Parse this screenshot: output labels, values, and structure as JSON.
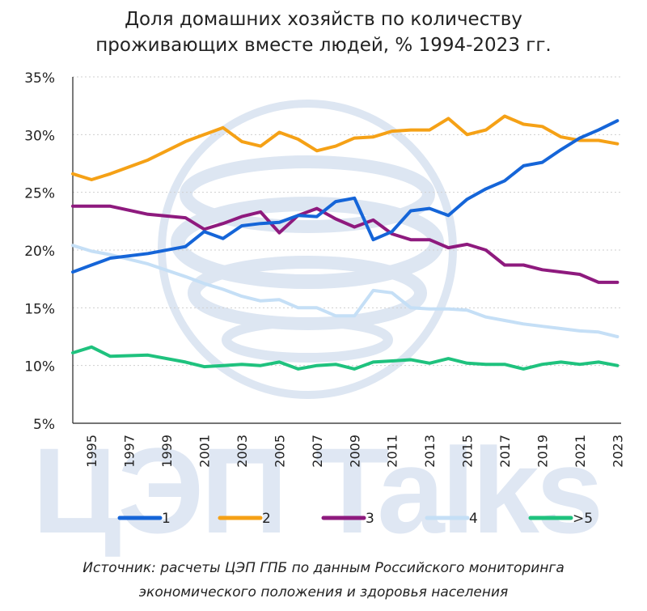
{
  "title_line1": "Доля домашних хозяйств по количеству",
  "title_line2": "проживающих вместе людей, % 1994-2023 гг.",
  "source_line1": "Источник: расчеты ЦЭП ГПБ по данным Российского мониторинга",
  "source_line2": "экономического положения и здоровья населения",
  "watermark": "ЦЭП Talks",
  "chart_data": {
    "type": "line",
    "title": "Доля домашних хозяйств по количеству проживающих вместе людей, % 1994-2023 гг.",
    "xlabel": "",
    "ylabel": "",
    "ylim": [
      5,
      35
    ],
    "yticks": [
      "5%",
      "10%",
      "15%",
      "20%",
      "25%",
      "30%",
      "35%"
    ],
    "xticks": [
      "1995",
      "1997",
      "1999",
      "2001",
      "2003",
      "2005",
      "2007",
      "2009",
      "2011",
      "2013",
      "2015",
      "2017",
      "2019",
      "2021",
      "2023"
    ],
    "grid": "horizontal dotted",
    "legend": "bottom",
    "x": [
      1994,
      1995,
      1996,
      1998,
      2000,
      2001,
      2002,
      2003,
      2004,
      2005,
      2006,
      2007,
      2008,
      2009,
      2010,
      2011,
      2012,
      2013,
      2014,
      2015,
      2016,
      2017,
      2018,
      2019,
      2020,
      2021,
      2022,
      2023
    ],
    "series": [
      {
        "name": "1",
        "color": "#1565d8",
        "values": [
          18.1,
          18.7,
          19.3,
          19.7,
          20.3,
          21.6,
          21.0,
          22.1,
          22.3,
          22.4,
          23.0,
          22.9,
          24.2,
          24.5,
          20.9,
          21.6,
          23.4,
          23.6,
          23.0,
          24.4,
          25.3,
          26.0,
          27.3,
          27.6,
          28.7,
          29.7,
          30.4,
          31.2
        ]
      },
      {
        "name": "2",
        "color": "#f5a116",
        "values": [
          26.6,
          26.1,
          26.6,
          27.8,
          29.4,
          30.0,
          30.6,
          29.4,
          29.0,
          30.2,
          29.6,
          28.6,
          29.0,
          29.7,
          29.8,
          30.3,
          30.4,
          30.4,
          31.4,
          30.0,
          30.4,
          31.6,
          30.9,
          30.7,
          29.8,
          29.5,
          29.5,
          29.2
        ]
      },
      {
        "name": "3",
        "color": "#8e1a7e",
        "values": [
          23.8,
          23.8,
          23.8,
          23.1,
          22.8,
          21.8,
          22.3,
          22.9,
          23.3,
          21.5,
          23.0,
          23.6,
          22.7,
          22.0,
          22.6,
          21.4,
          20.9,
          20.9,
          20.2,
          20.5,
          20.0,
          18.7,
          18.7,
          18.3,
          18.1,
          17.9,
          17.2,
          17.2
        ]
      },
      {
        "name": "4",
        "color": "#c5dff6",
        "values": [
          20.4,
          19.9,
          19.6,
          18.8,
          17.7,
          17.1,
          16.6,
          16.0,
          15.6,
          15.7,
          15.0,
          15.0,
          14.3,
          14.3,
          16.5,
          16.3,
          15.0,
          14.9,
          14.9,
          14.8,
          14.2,
          13.9,
          13.6,
          13.4,
          13.2,
          13.0,
          12.9,
          12.5
        ]
      },
      {
        "name": ">5",
        "color": "#1fc27e",
        "values": [
          11.1,
          11.6,
          10.8,
          10.9,
          10.3,
          9.9,
          10.0,
          10.1,
          10.0,
          10.3,
          9.7,
          10.0,
          10.1,
          9.7,
          10.3,
          10.4,
          10.5,
          10.2,
          10.6,
          10.2,
          10.1,
          10.1,
          9.7,
          10.1,
          10.3,
          10.1,
          10.3,
          10.0
        ]
      }
    ]
  }
}
